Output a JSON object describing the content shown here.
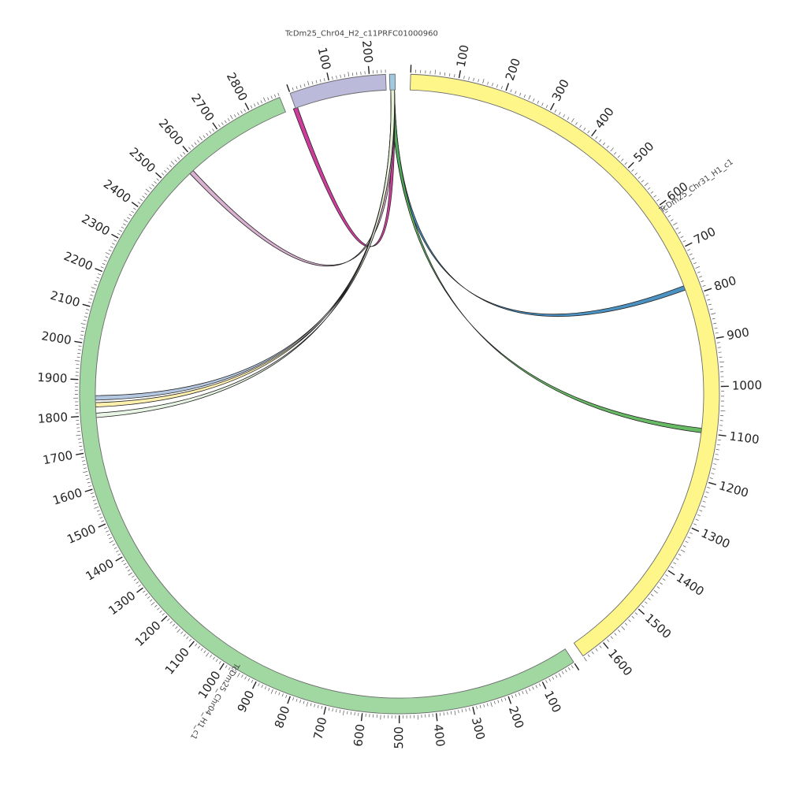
{
  "segments": [
    {
      "id": "chr31",
      "name": "TcDm25_Chr31_H1_c1",
      "length": 1650,
      "color": "#fff68a",
      "start_label": "0",
      "tick_labels": [
        "100",
        "200",
        "300",
        "400",
        "500",
        "600",
        "700",
        "800",
        "900",
        "1000",
        "1100",
        "1200",
        "1300",
        "1400",
        "1500",
        "1600"
      ]
    },
    {
      "id": "chr04h1",
      "name": "TcDm25_Chr04_H1_c1",
      "length": 2890,
      "color": "#a1d8a2",
      "tick_labels": [
        "100",
        "200",
        "300",
        "400",
        "500",
        "600",
        "700",
        "800",
        "900",
        "1000",
        "1100",
        "1200",
        "1300",
        "1400",
        "1500",
        "1600",
        "1700",
        "1800",
        "1900",
        "2000",
        "2100",
        "2200",
        "2300",
        "2400",
        "2500",
        "2600",
        "2700",
        "2800"
      ]
    },
    {
      "id": "prfc",
      "name": "TcDm25_Chr04_H2_c11PRFC01000960",
      "length": 240,
      "color": "#bcbadb",
      "tick_labels": [
        "100",
        "200"
      ]
    },
    {
      "id": "small",
      "name": "",
      "length": 12,
      "color": "#9ecae1",
      "tick_labels": []
    }
  ],
  "links": [
    {
      "from": "small",
      "to": "chr31",
      "to_pos": 780,
      "color": "#2c7fb8"
    },
    {
      "from": "small",
      "to": "chr31",
      "to_pos": 1095,
      "color": "#4daf4a"
    },
    {
      "from": "small",
      "to": "prfc",
      "to_pos": -10,
      "color": "#c51b8a"
    },
    {
      "from": "small",
      "to": "chr04h1",
      "to_pos": 2570,
      "color": "#d4a5c9"
    },
    {
      "from": "small",
      "to": "chr04h1",
      "to_pos": 1850,
      "color": "#a6bddb"
    },
    {
      "from": "small",
      "to": "chr04h1",
      "to_pos": 1830,
      "color": "#ffeda0"
    },
    {
      "from": "small",
      "to": "chr04h1",
      "to_pos": 1800,
      "color": "#e5f5e0"
    }
  ]
}
